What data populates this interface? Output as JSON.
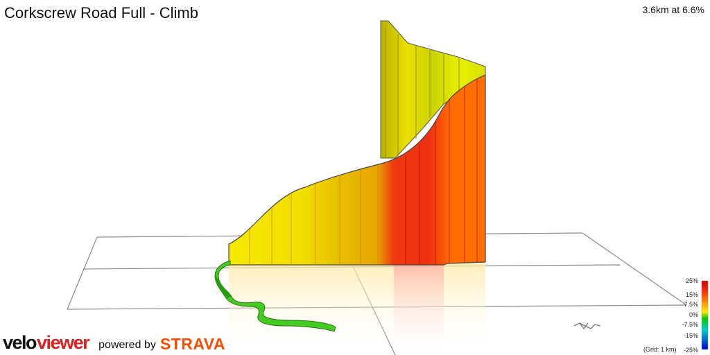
{
  "header": {
    "title": "Corkscrew Road Full - Climb",
    "stats": "3.6km at 6.6%"
  },
  "legend": {
    "ticks": [
      "25%",
      "15%",
      "7.5%",
      "0%",
      "-7.5%",
      "-15%",
      "-25%"
    ],
    "grid_note": "(Grid: 1 km)",
    "colors": [
      "#cc0000",
      "#ff2a00",
      "#ff8800",
      "#ffee00",
      "#00cc00",
      "#00cccc",
      "#0000cc"
    ]
  },
  "branding": {
    "logo_velo": "velo",
    "logo_viewer": "viewer",
    "powered_by": "powered by",
    "strava": "STRAVA",
    "strava_color": "#fc4c02",
    "viewer_color": "#e02020"
  },
  "compass": {
    "label": "N",
    "icon": "north-arrow-icon"
  },
  "profile": {
    "segment_colors": [
      "#22b800",
      "#88dd00",
      "#ddee00",
      "#f5e800",
      "#e8c000",
      "#e8a000",
      "#f04010",
      "#ff6600"
    ],
    "gradient_label": "gradient-colored 3d elevation wall"
  }
}
